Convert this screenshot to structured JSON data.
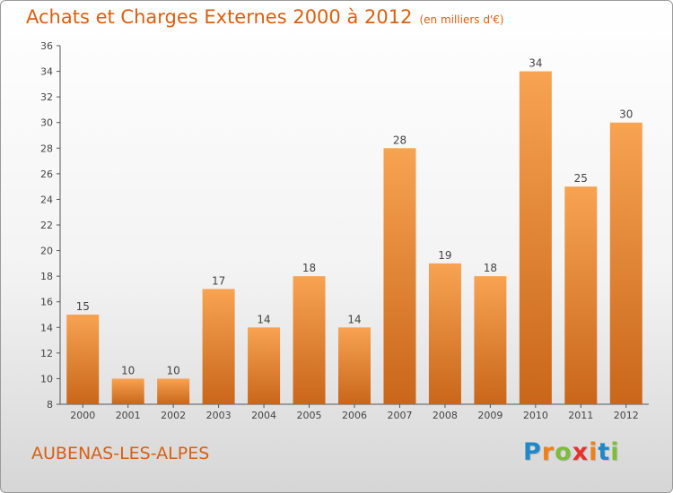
{
  "title": "Achats et Charges Externes 2000 à 2012",
  "subtitle": "(en milliers d'€)",
  "commune": "AUBENAS-LES-ALPES",
  "logo": {
    "text": "Proxiti",
    "colors": [
      "#1e88c8",
      "#f0801a",
      "#7cbd3a",
      "#e6332a",
      "#f0801a",
      "#1e88c8",
      "#7cbd3a"
    ]
  },
  "colors": {
    "bar": "#f0922e",
    "bar_dark": "#c9661a",
    "title": "#d95f10",
    "axis": "#555555"
  },
  "chart_data": {
    "type": "bar",
    "title": "Achats et Charges Externes 2000 à 2012",
    "subtitle": "(en milliers d'€)",
    "categories": [
      "2000",
      "2001",
      "2002",
      "2003",
      "2004",
      "2005",
      "2006",
      "2007",
      "2008",
      "2009",
      "2010",
      "2011",
      "2012"
    ],
    "values": [
      15,
      10,
      10,
      17,
      14,
      18,
      14,
      28,
      19,
      18,
      34,
      25,
      30
    ],
    "data_labels": [
      "15",
      "10",
      "10",
      "17",
      "14",
      "18",
      "14",
      "28",
      "19",
      "18",
      "34",
      "25",
      "30"
    ],
    "ylim": [
      8,
      36
    ],
    "yticks": [
      8,
      10,
      12,
      14,
      16,
      18,
      20,
      22,
      24,
      26,
      28,
      30,
      32,
      34,
      36
    ],
    "grid": false
  }
}
